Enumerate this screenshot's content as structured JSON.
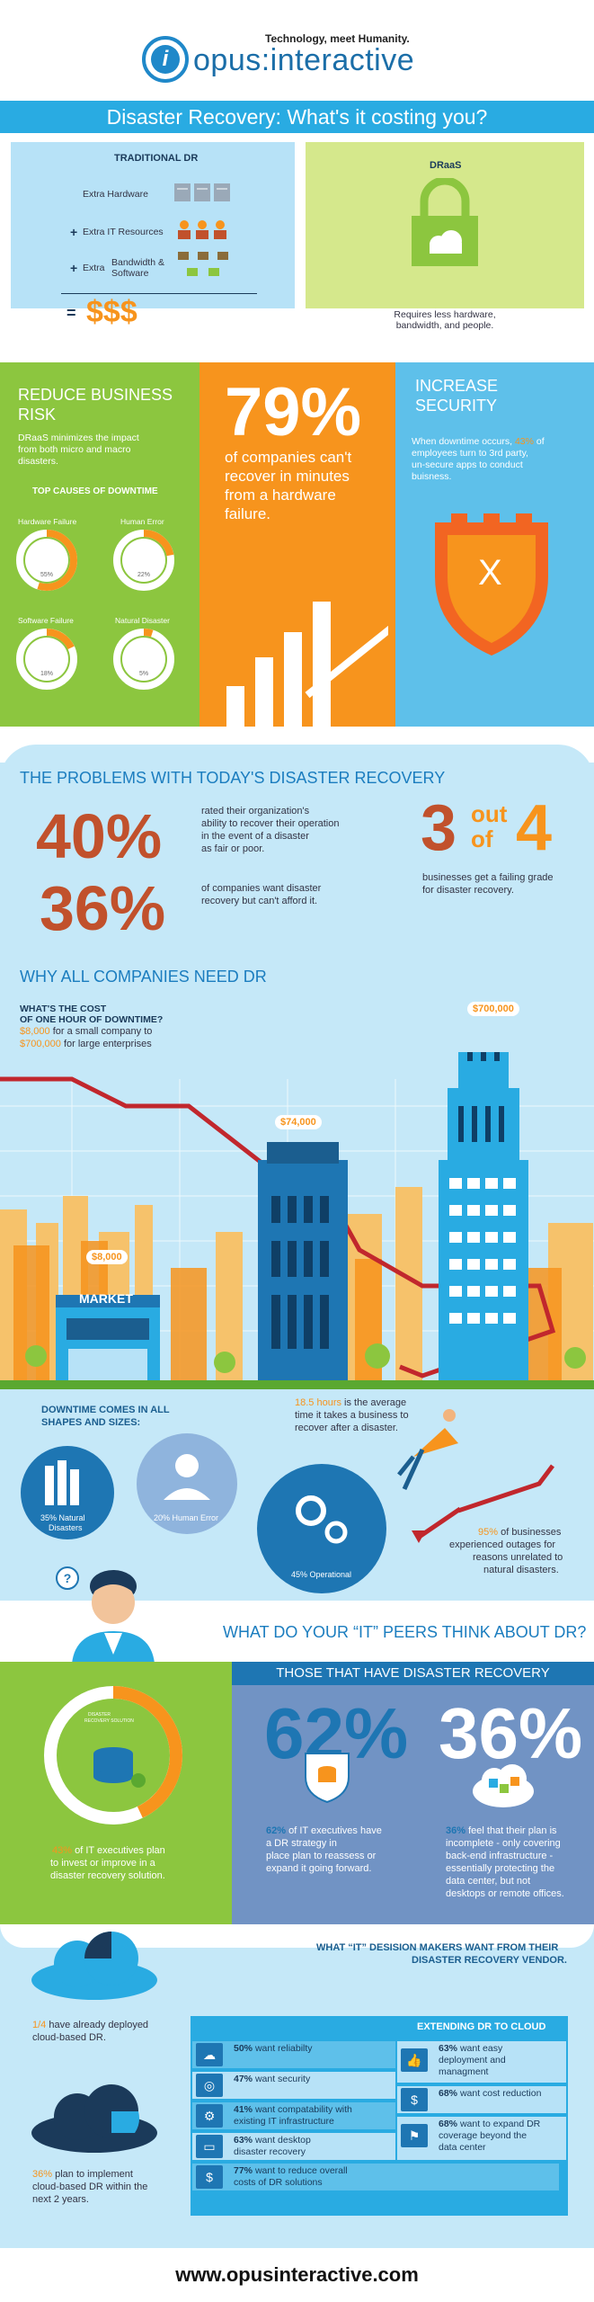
{
  "header": {
    "tagline": "Technology, meet Humanity.",
    "logo_i": "i",
    "logo_text": "opus:interactive",
    "banner": "Disaster Recovery: What's it costing you?"
  },
  "traditional": {
    "title": "TRADITIONAL DR",
    "row1": "Extra Hardware",
    "plus": "+",
    "row2": "Extra IT Resources",
    "row3a": "Extra",
    "row3b": "Bandwidth &",
    "row3c": "Software",
    "equals": "=",
    "cost": "$$$"
  },
  "draas": {
    "title": "DRaaS",
    "caption1": "Requires less hardware,",
    "caption2": "bandwidth, and people."
  },
  "reduce": {
    "title1": "REDUCE BUSINESS",
    "title2": "RISK",
    "text1": "DRaaS minimizes the impact",
    "text2": "from both micro and macro",
    "text3": "disasters.",
    "causes_title": "TOP CAUSES OF DOWNTIME",
    "causes": [
      {
        "label": "Hardware Failure",
        "pct": "55%",
        "value": 55
      },
      {
        "label": "Human Error",
        "pct": "22%",
        "value": 22
      },
      {
        "label": "Software Failure",
        "pct": "18%",
        "value": 18
      },
      {
        "label": "Natural Disaster",
        "pct": "5%",
        "value": 5
      }
    ]
  },
  "orange": {
    "big": "79%",
    "line1": "of companies can't",
    "line2": "recover in minutes",
    "line3": "from a hardware",
    "line4": "failure."
  },
  "security": {
    "title1": "INCREASE",
    "title2": "SECURITY",
    "t1": "When downtime occurs,",
    "pct": "43%",
    "t2": "of",
    "t3": "employees turn to 3rd party,",
    "t4": "un-secure apps to conduct",
    "t5": "buisness.",
    "shield_x": "X"
  },
  "problems": {
    "title": "THE PROBLEMS WITH TODAY'S DISASTER RECOVERY",
    "p40": "40%",
    "p40_l1": "rated their organization's",
    "p40_l2": "ability to recover their operation",
    "p40_l3": "in the event of a disaster",
    "p40_l4": "as fair or poor.",
    "p36": "36%",
    "p36_l1": "of companies want disaster",
    "p36_l2": "recovery but can't afford it.",
    "three": "3",
    "out": "out",
    "of": "of",
    "four": "4",
    "grade1": "businesses get a failing grade",
    "grade2": "for disaster recovery."
  },
  "why": {
    "title": "WHY ALL COMPANIES NEED DR",
    "q1": "WHAT'S THE COST",
    "q2": "OF ONE HOUR OF DOWNTIME?",
    "small_val": "$8,000",
    "small_txt": "for a small company to",
    "large_val": "$700,000",
    "large_txt": "for large enterprises",
    "tag_700": "$700,000",
    "tag_74": "$74,000",
    "tag_8": "$8,000",
    "market": "MARKET"
  },
  "downtime": {
    "title1": "DOWNTIME COMES IN ALL",
    "title2": "SHAPES AND SIZES:",
    "hours": "18.5 hours",
    "hours_t1": "is the average",
    "hours_t2": "time it takes a business to",
    "hours_t3": "recover after a disaster.",
    "c1a": "35% Natural",
    "c1b": "Disasters",
    "c2": "20% Human Error",
    "c3": "45% Operational",
    "pct95": "95%",
    "t95a": "of businesses",
    "t95b": "experienced outages for",
    "t95c": "reasons unrelated to",
    "t95d": "natural disasters.",
    "question": "?"
  },
  "peers": {
    "title": "WHAT DO YOUR “IT” PEERS THINK ABOUT DR?",
    "ring_l1": "DISASTER",
    "ring_l2": "RECOVERY SOLUTION",
    "pct43": "43%",
    "t43a": "of IT executives plan",
    "t43b": "to invest or improve in a",
    "t43c": "disaster recovery solution.",
    "those": "THOSE THAT HAVE DISASTER RECOVERY",
    "big62": "62%",
    "big36": "36%",
    "t62_pct": "62%",
    "t62a": "of IT executives have",
    "t62b": "a DR strategy in",
    "t62c": "place plan to reassess or",
    "t62d": "expand it going forward.",
    "t36_pct": "36%",
    "t36a": "feel that their plan is",
    "t36b": "incomplete - only covering",
    "t36c": "back-end infrastructure -",
    "t36d": "essentially protecting the",
    "t36e": "data center, but not",
    "t36f": "desktops or remote offices."
  },
  "vendor": {
    "title1": "WHAT “IT” DESISION MAKERS WANT FROM THEIR",
    "title2": "DISASTER RECOVERY VENDOR.",
    "cloud1_pct": "1/4",
    "cloud1_a": "have already deployed",
    "cloud1_b": "cloud-based DR.",
    "cloud2_pct": "36%",
    "cloud2_a": "plan to implement",
    "cloud2_b": "cloud-based DR within the",
    "cloud2_c": "next 2 years.",
    "extending": "EXTENDING DR TO CLOUD",
    "left": [
      {
        "pct": "50%",
        "a": "want reliabilty",
        "b": ""
      },
      {
        "pct": "47%",
        "a": "want security",
        "b": ""
      },
      {
        "pct": "41%",
        "a": "want compatability with",
        "b": "existing IT infrastructure"
      },
      {
        "pct": "63%",
        "a": "want desktop",
        "b": "disaster recovery"
      },
      {
        "pct": "77%",
        "a": "want to reduce overall",
        "b": "costs of DR solutions"
      }
    ],
    "right": [
      {
        "pct": "63%",
        "a": "want easy",
        "b": "deployment and",
        "c": "managment"
      },
      {
        "pct": "68%",
        "a": "want cost reduction",
        "b": "",
        "c": ""
      },
      {
        "pct": "68%",
        "a": "want to expand DR",
        "b": "coverage beyond the",
        "c": "data center"
      }
    ],
    "dollar": "$"
  },
  "footer": {
    "url": "www.opusinteractive.com"
  },
  "colors": {
    "blue": "#29abe2",
    "orange": "#f7941d",
    "green": "#8cc63f",
    "brown": "#c1512c",
    "navy": "#1e76b3"
  }
}
